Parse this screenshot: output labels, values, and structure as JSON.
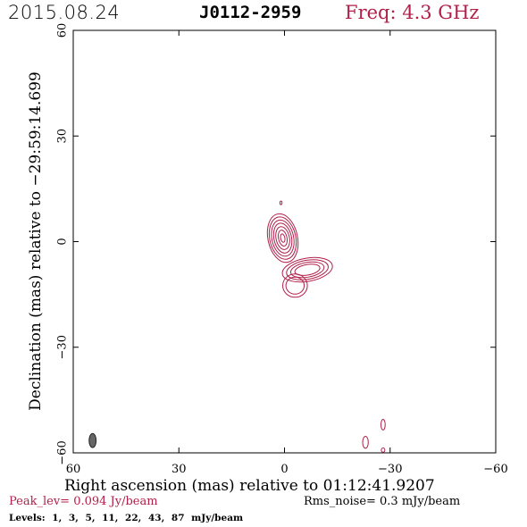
{
  "header": {
    "date": "2015.08.24",
    "source": "J0112-2959",
    "freq": "Freq: 4.3 GHz"
  },
  "colors": {
    "accent": "#b0204a",
    "axis": "#000000",
    "beam": "#666666"
  },
  "chart_data": {
    "type": "contour",
    "xlabel": "Right ascension (mas) relative to 01:12:41.9207",
    "ylabel": "Declination (mas) relative to −29:59:14.699",
    "xlim": [
      60,
      -60
    ],
    "ylim": [
      -60,
      60
    ],
    "xticks": [
      60,
      30,
      0,
      -30,
      -60
    ],
    "xtick_labels": [
      "60",
      "30",
      "0",
      "−30",
      "−60"
    ],
    "yticks": [
      -60,
      -30,
      0,
      30,
      60
    ],
    "ytick_labels": [
      "−60",
      "−30",
      "0",
      "30",
      "60"
    ],
    "contour_levels_mJy": [
      1,
      3,
      5,
      11,
      22,
      43,
      87
    ],
    "components": [
      {
        "x": 0.5,
        "y": 1.0,
        "rx": [
          4.2,
          3.7,
          3.1,
          2.5,
          1.9,
          1.2,
          0.6
        ],
        "ry": [
          7.0,
          6.1,
          5.2,
          4.3,
          3.3,
          2.3,
          1.2
        ],
        "angle": -12
      },
      {
        "x": -6.5,
        "y": -8.0,
        "rx": [
          7.2,
          6.0,
          4.8,
          3.6
        ],
        "ry": [
          3.3,
          2.7,
          2.1,
          1.5
        ],
        "angle": -10
      },
      {
        "x": -3.0,
        "y": -12.5,
        "rx": [
          3.5,
          2.6
        ],
        "ry": [
          3.3,
          2.4
        ],
        "angle": 0
      }
    ],
    "noise_contours": [
      {
        "x": 1.0,
        "y": 11.0,
        "rx": 0.3,
        "ry": 0.5
      },
      {
        "x": -23.0,
        "y": -57.0,
        "rx": 0.8,
        "ry": 1.7
      },
      {
        "x": -28.0,
        "y": -52.0,
        "rx": 0.6,
        "ry": 1.5
      },
      {
        "x": -28.0,
        "y": -59.2,
        "rx": 0.5,
        "ry": 0.6
      }
    ],
    "beam": {
      "x": 54.5,
      "y": -56.5,
      "rx": 1.0,
      "ry": 2.0,
      "angle": 0
    },
    "peak_label": "Peak_lev=  0.094 Jy/beam",
    "rms_label": "Rms_noise=   0.3  mJy/beam",
    "levels_label": "Levels:   1,   3,   5,  11,  22,  43,  87  mJy/beam"
  }
}
